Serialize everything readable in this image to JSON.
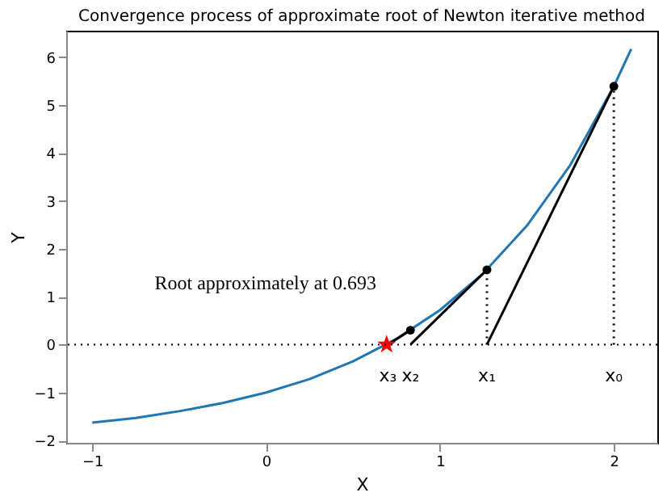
{
  "chart_data": {
    "type": "line",
    "title": "Convergence process of approximate root of Newton iterative method",
    "xlabel": "X",
    "ylabel": "Y",
    "xlim": [
      -1.15,
      2.25
    ],
    "ylim": [
      -2.05,
      6.55
    ],
    "xticks": [
      -1,
      0,
      1,
      2
    ],
    "yticks": [
      -2,
      -1,
      0,
      1,
      2,
      3,
      4,
      5,
      6
    ],
    "grid": false,
    "series": [
      {
        "color": "#1f77b4",
        "x": [
          -1,
          -0.75,
          -0.5,
          -0.25,
          0,
          0.25,
          0.5,
          0.75,
          1,
          1.25,
          1.5,
          1.75,
          2,
          2.1
        ],
        "values": [
          -1.63,
          -1.53,
          -1.39,
          -1.22,
          -1,
          -0.72,
          -0.35,
          0.12,
          0.72,
          1.49,
          2.48,
          3.75,
          5.39,
          6.17
        ],
        "line_style": "solid",
        "marker": "none"
      },
      {
        "type": "line",
        "color": "#000000",
        "x": [
          2,
          1.27
        ],
        "values": [
          5.39,
          0
        ],
        "line_style": "solid",
        "marker": "none"
      },
      {
        "type": "line",
        "color": "#000000",
        "x": [
          1.27,
          0.83
        ],
        "values": [
          1.56,
          0
        ],
        "line_style": "solid",
        "marker": "none"
      },
      {
        "type": "line",
        "color": "#000000",
        "x": [
          0.83,
          0.7
        ],
        "values": [
          0.3,
          0
        ],
        "line_style": "solid",
        "marker": "none"
      },
      {
        "type": "line",
        "color": "#000000",
        "x": [
          2,
          2
        ],
        "values": [
          0,
          5.39
        ],
        "line_style": "dotted",
        "marker": "none"
      },
      {
        "type": "line",
        "color": "#000000",
        "x": [
          1.27,
          1.27
        ],
        "values": [
          0,
          1.56
        ],
        "line_style": "dotted",
        "marker": "none"
      },
      {
        "type": "scatter",
        "color": "#000000",
        "x": [
          2,
          1.27,
          0.83
        ],
        "values": [
          5.39,
          1.56,
          0.3
        ],
        "marker": "circle"
      },
      {
        "type": "scatter",
        "color": "#ff0000",
        "x": [
          0.693
        ],
        "values": [
          0
        ],
        "marker": "star"
      }
    ],
    "ref_lines": [
      {
        "axis": "y",
        "value": 0,
        "color": "#000000",
        "line_style": "dotted"
      }
    ],
    "annotations": [
      {
        "text": "Root approximately at 0.693",
        "x": 0.693,
        "y": 0
      },
      {
        "text": "x₀",
        "x": 2,
        "y": 0
      },
      {
        "text": "x₁",
        "x": 1.27,
        "y": 0
      },
      {
        "text": "x₂",
        "x": 0.83,
        "y": 0
      },
      {
        "text": "x₃",
        "x": 0.7,
        "y": 0
      }
    ]
  }
}
